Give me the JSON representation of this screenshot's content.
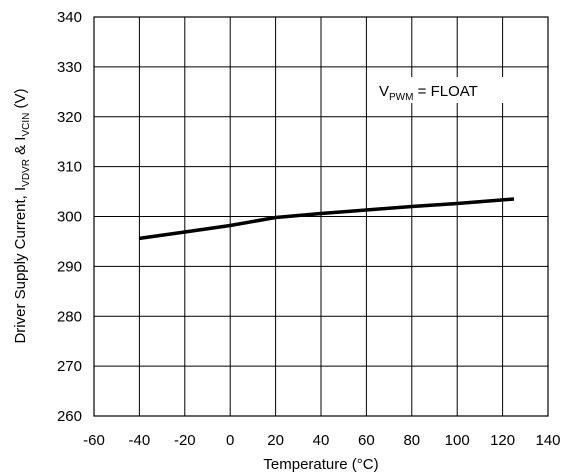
{
  "chart_data": {
    "type": "line",
    "title": "",
    "xlabel": "Temperature (°C)",
    "ylabel": {
      "prefix": "Driver Supply Current, I",
      "sub1": "VDVR",
      "middle": " & I",
      "sub2": "VCIN",
      "suffix": " (V)"
    },
    "xlim": [
      -60,
      140
    ],
    "ylim": [
      260,
      340
    ],
    "xticks": [
      -60,
      -40,
      -20,
      0,
      20,
      40,
      60,
      80,
      100,
      120,
      140
    ],
    "yticks": [
      260,
      270,
      280,
      290,
      300,
      310,
      320,
      330,
      340
    ],
    "grid": true,
    "annotation": {
      "main": "V",
      "sub": "PWM",
      "rest": " = FLOAT"
    },
    "series": [
      {
        "color": "#000000",
        "x": [
          -40,
          -20,
          0,
          20,
          40,
          60,
          80,
          100,
          125
        ],
        "y": [
          295.6,
          296.9,
          298.2,
          299.8,
          300.6,
          301.3,
          302.0,
          302.6,
          303.5
        ]
      }
    ]
  }
}
